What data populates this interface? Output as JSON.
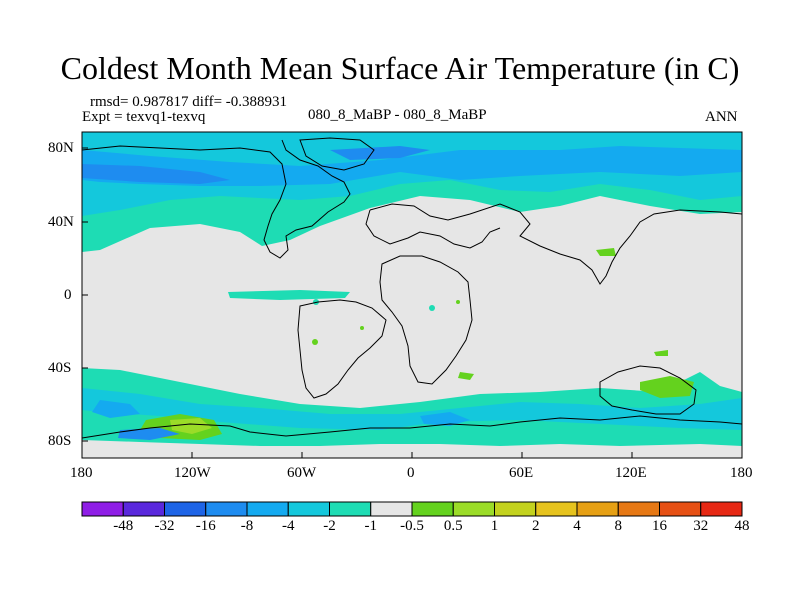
{
  "title": "Coldest Month Mean Surface Air Temperature (in C)",
  "stats_line": "rmsd= 0.987817 diff= -0.388931",
  "expt_line": "Expt = texvq1-texvq",
  "case_label": "080_8_MaBP - 080_8_MaBP",
  "season": "ANN",
  "y_ticks": [
    "80N",
    "40N",
    "0",
    "40S",
    "80S"
  ],
  "x_ticks": [
    "180",
    "120W",
    "60W",
    "0",
    "60E",
    "120E",
    "180"
  ],
  "colorbar": {
    "colors": [
      "#8f1ee6",
      "#5a28dc",
      "#1e64e6",
      "#1e8cf0",
      "#14aaf0",
      "#14c8dc",
      "#1edcb4",
      "#e6e6e6",
      "#64d21e",
      "#9bdc28",
      "#c3d21e",
      "#e6c31e",
      "#e6a014",
      "#e67814",
      "#e65014",
      "#e62814"
    ],
    "labels": [
      "-48",
      "-32",
      "-16",
      "-8",
      "-4",
      "-2",
      "-1",
      "-0.5",
      "0.5",
      "1",
      "2",
      "4",
      "8",
      "16",
      "32",
      "48"
    ]
  }
}
